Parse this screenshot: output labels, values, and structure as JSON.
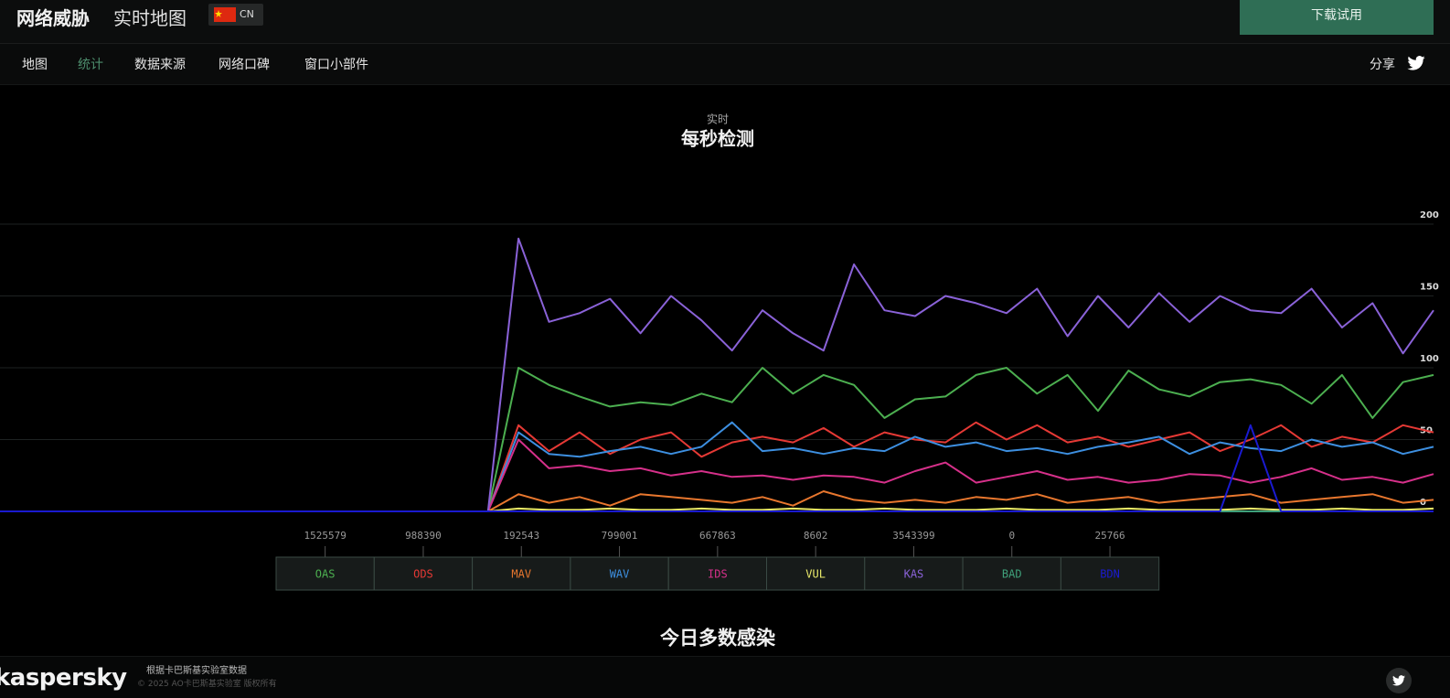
{
  "header": {
    "title": "网络威胁",
    "subtitle": "实时地图",
    "region": "CN",
    "download": "下载试用"
  },
  "nav": {
    "items": [
      "地图",
      "统计",
      "数据来源",
      "网络口碑",
      "窗口小部件"
    ],
    "share": "分享"
  },
  "chart_data": {
    "type": "line",
    "kicker": "实时",
    "title": "每秒检测",
    "ylim": [
      0,
      200
    ],
    "yticks": [
      0,
      50,
      100,
      150,
      200
    ],
    "grid": true,
    "series": [
      {
        "name": "OAS",
        "color": "#4caf50",
        "total": 1525579,
        "values": [
          0,
          0,
          0,
          0,
          0,
          0,
          0,
          0,
          0,
          0,
          0,
          0,
          0,
          0,
          0,
          0,
          0,
          100,
          88,
          80,
          73,
          76,
          74,
          82,
          76,
          100,
          82,
          95,
          88,
          65,
          78,
          80,
          95,
          100,
          82,
          95,
          70,
          98,
          85,
          80,
          90,
          92,
          88,
          75,
          95,
          65,
          90,
          95
        ]
      },
      {
        "name": "ODS",
        "color": "#e53935",
        "total": 988390,
        "values": [
          0,
          0,
          0,
          0,
          0,
          0,
          0,
          0,
          0,
          0,
          0,
          0,
          0,
          0,
          0,
          0,
          0,
          60,
          42,
          55,
          40,
          50,
          55,
          38,
          48,
          52,
          48,
          58,
          45,
          55,
          50,
          48,
          62,
          50,
          60,
          48,
          52,
          45,
          50,
          55,
          42,
          50,
          60,
          45,
          52,
          48,
          60,
          55
        ]
      },
      {
        "name": "MAV",
        "color": "#e8772e",
        "total": 192543,
        "values": [
          0,
          0,
          0,
          0,
          0,
          0,
          0,
          0,
          0,
          0,
          0,
          0,
          0,
          0,
          0,
          0,
          0,
          12,
          6,
          10,
          4,
          12,
          10,
          8,
          6,
          10,
          4,
          14,
          8,
          6,
          8,
          6,
          10,
          8,
          12,
          6,
          8,
          10,
          6,
          8,
          10,
          12,
          6,
          8,
          10,
          12,
          6,
          8
        ]
      },
      {
        "name": "WAV",
        "color": "#3d8fe0",
        "total": 799001,
        "values": [
          0,
          0,
          0,
          0,
          0,
          0,
          0,
          0,
          0,
          0,
          0,
          0,
          0,
          0,
          0,
          0,
          0,
          55,
          40,
          38,
          42,
          45,
          40,
          45,
          62,
          42,
          44,
          40,
          44,
          42,
          52,
          45,
          48,
          42,
          44,
          40,
          45,
          48,
          52,
          40,
          48,
          44,
          42,
          50,
          45,
          48,
          40,
          45
        ]
      },
      {
        "name": "IDS",
        "color": "#d6308a",
        "total": 667863,
        "values": [
          0,
          0,
          0,
          0,
          0,
          0,
          0,
          0,
          0,
          0,
          0,
          0,
          0,
          0,
          0,
          0,
          0,
          50,
          30,
          32,
          28,
          30,
          25,
          28,
          24,
          25,
          22,
          25,
          24,
          20,
          28,
          34,
          20,
          24,
          28,
          22,
          24,
          20,
          22,
          26,
          25,
          20,
          24,
          30,
          22,
          24,
          20,
          26
        ]
      },
      {
        "name": "VUL",
        "color": "#eaea6a",
        "total": 8602,
        "values": [
          0,
          0,
          0,
          0,
          0,
          0,
          0,
          0,
          0,
          0,
          0,
          0,
          0,
          0,
          0,
          0,
          0,
          2,
          1,
          1,
          2,
          1,
          1,
          2,
          1,
          1,
          2,
          1,
          1,
          2,
          1,
          1,
          1,
          2,
          1,
          1,
          1,
          2,
          1,
          1,
          1,
          2,
          1,
          1,
          2,
          1,
          1,
          2
        ]
      },
      {
        "name": "KAS",
        "color": "#8a62d8",
        "total": 3543399,
        "values": [
          0,
          0,
          0,
          0,
          0,
          0,
          0,
          0,
          0,
          0,
          0,
          0,
          0,
          0,
          0,
          0,
          0,
          190,
          132,
          138,
          148,
          124,
          150,
          133,
          112,
          140,
          124,
          112,
          172,
          140,
          136,
          150,
          145,
          138,
          155,
          122,
          150,
          128,
          152,
          132,
          150,
          140,
          138,
          155,
          128,
          145,
          110,
          140
        ]
      },
      {
        "name": "BAD",
        "color": "#3fa07a",
        "total": 0,
        "values": [
          0,
          0,
          0,
          0,
          0,
          0,
          0,
          0,
          0,
          0,
          0,
          0,
          0,
          0,
          0,
          0,
          0,
          0,
          0,
          0,
          0,
          0,
          0,
          0,
          0,
          0,
          0,
          0,
          0,
          0,
          0,
          0,
          0,
          0,
          0,
          0,
          0,
          0,
          0,
          0,
          0,
          0,
          0,
          0,
          0,
          0,
          0,
          0
        ]
      },
      {
        "name": "BDN",
        "color": "#1a1ad0",
        "total": 25766,
        "values": [
          0,
          0,
          0,
          0,
          0,
          0,
          0,
          0,
          0,
          0,
          0,
          0,
          0,
          0,
          0,
          0,
          0,
          0,
          0,
          0,
          0,
          0,
          0,
          0,
          0,
          0,
          0,
          0,
          0,
          0,
          0,
          0,
          0,
          0,
          0,
          0,
          0,
          0,
          0,
          0,
          0,
          60,
          0,
          0,
          0,
          0,
          0,
          0
        ]
      }
    ]
  },
  "section_title": "今日多数感染",
  "footer": {
    "logo": "kaspersky",
    "source": "根据卡巴斯基实验室数据",
    "copyright": "© 2025 AO卡巴斯基实验室 版权所有"
  }
}
